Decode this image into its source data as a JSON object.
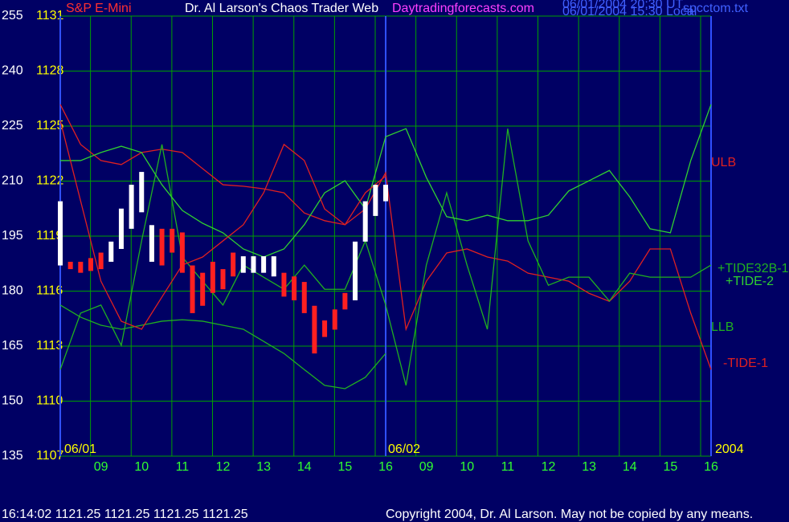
{
  "chart_data": {
    "type": "line",
    "title": "S&P E-Mini",
    "subtitle": "Dr. Al Larson's Chaos Trader Web",
    "site": "Daytradingforecasts.com",
    "timestamps": [
      "06/01/2004 20:30 UT",
      "06/01/2004 15:30 Local"
    ],
    "file": "spcctom.txt",
    "status": "16:14:02  1121.25 1121.25 1121.25 1121.25",
    "copyright": "Copyright 2004, Dr. Al Larson. May not be copied by any means.",
    "day_labels": [
      "06/01",
      "06/02",
      "2004"
    ],
    "background": "#000064",
    "grid_color": "#00a000",
    "grid": true,
    "xlim": [
      8,
      24
    ],
    "xticks": [
      {
        "value": 9,
        "label": "09"
      },
      10,
      11,
      12,
      13,
      14,
      15,
      16,
      {
        "value": 17,
        "label": "09"
      },
      {
        "value": 18,
        "label": "10"
      },
      {
        "value": 19,
        "label": "11"
      },
      {
        "value": 20,
        "label": "12"
      },
      {
        "value": 21,
        "label": "13"
      },
      {
        "value": 22,
        "label": "14"
      },
      {
        "value": 23,
        "label": "15"
      },
      {
        "value": 24,
        "label": "16"
      }
    ],
    "ylim": [
      135,
      255
    ],
    "yticks": [
      135,
      150,
      165,
      180,
      195,
      210,
      225,
      240,
      255
    ],
    "y2lim": [
      1107,
      1131
    ],
    "y2ticks": [
      1107,
      1110,
      1113,
      1116,
      1119,
      1122,
      1125,
      1128,
      1131
    ],
    "x": [
      8,
      8.5,
      9,
      9.5,
      10,
      10.5,
      11,
      11.5,
      12,
      12.5,
      13,
      13.5,
      14,
      14.5,
      15,
      15.5,
      16,
      16.5,
      17,
      17.5,
      18,
      18.5,
      19,
      19.5,
      20,
      20.5,
      21,
      21.5,
      22,
      22.5,
      23,
      23.5,
      24
    ],
    "series": [
      {
        "name": "ULB",
        "color": "#e02020",
        "values": [
          230.9,
          220.0,
          215.6,
          214.5,
          217.8,
          218.7,
          217.8,
          213.4,
          209.0,
          208.6,
          207.9,
          206.8,
          201.3,
          199.2,
          198.1,
          202.4,
          212.3,
          169.6,
          182.7,
          190.4,
          191.5,
          189.3,
          188.2,
          184.9,
          183.8,
          182.7,
          179.4,
          177.2,
          182.7,
          191.5,
          191.5,
          174.0,
          158.6
        ]
      },
      {
        "name": "+TIDE32B-1",
        "color": "#20b020",
        "values": [
          158.6,
          174.0,
          176.2,
          165.2,
          193.7,
          220.0,
          189.3,
          182.7,
          176.2,
          187.1,
          183.8,
          180.5,
          187.1,
          180.5,
          180.5,
          193.7,
          176.2,
          154.3,
          187.1,
          206.8,
          187.1,
          169.6,
          224.3,
          193.7,
          181.6,
          183.8,
          183.8,
          177.3,
          184.9,
          183.8,
          183.8,
          183.8,
          187.1
        ]
      },
      {
        "name": "+TIDE-2",
        "color": "#30d030",
        "values": [
          215.6,
          215.6,
          217.8,
          219.5,
          217.8,
          209.0,
          202.0,
          198.5,
          195.9,
          191.5,
          189.3,
          191.5,
          198.1,
          206.8,
          210.1,
          202.4,
          222.1,
          224.3,
          211.0,
          200.3,
          199.2,
          200.7,
          199.2,
          199.2,
          200.7,
          207.3,
          210.1,
          212.9,
          205.7,
          197.0,
          195.9,
          215.6,
          230.9
        ]
      },
      {
        "name": "LLB",
        "color": "#20b020",
        "values": [
          176.2,
          172.9,
          170.7,
          169.6,
          170.7,
          171.8,
          172.2,
          171.8,
          170.7,
          169.6,
          166.3,
          163.0,
          158.6,
          154.3,
          153.4,
          156.5,
          163.0,
          null,
          null,
          null,
          null,
          null,
          null,
          null,
          null,
          null,
          null,
          null,
          null,
          null,
          null,
          null,
          null
        ]
      },
      {
        "name": "-TIDE-1",
        "color": "#e02020",
        "values": [
          226.5,
          204.6,
          182.7,
          171.8,
          169.6,
          178.4,
          187.1,
          189.3,
          193.7,
          198.1,
          206.8,
          220.0,
          215.6,
          202.4,
          198.1,
          206.8,
          211.4,
          null,
          null,
          null,
          null,
          null,
          null,
          null,
          null,
          null,
          null,
          null,
          null,
          null,
          null,
          null,
          null
        ]
      }
    ],
    "bars": {
      "axis": "y2",
      "x": [
        8,
        8.25,
        8.5,
        8.75,
        9,
        9.25,
        9.5,
        9.75,
        10,
        10.25,
        10.5,
        10.75,
        11,
        11.25,
        11.5,
        11.75,
        12,
        12.25,
        12.5,
        12.75,
        13,
        13.25,
        13.5,
        13.75,
        14,
        14.25,
        14.5,
        14.75,
        15,
        15.25,
        15.5,
        15.75,
        16
      ],
      "high": [
        1120.9,
        1117.6,
        1117.6,
        1117.8,
        1118.1,
        1118.7,
        1120.5,
        1121.8,
        1122.5,
        1119.6,
        1119.4,
        1119.4,
        1119.2,
        1117.4,
        1117.0,
        1117.6,
        1117.2,
        1118.1,
        1117.9,
        1117.9,
        1117.9,
        1117.9,
        1117.0,
        1116.8,
        1116.5,
        1115.2,
        1114.4,
        1115.0,
        1115.9,
        1118.7,
        1120.9,
        1121.8,
        1121.8
      ],
      "low": [
        1117.4,
        1117.2,
        1117.0,
        1117.1,
        1117.2,
        1117.6,
        1118.3,
        1119.4,
        1120.3,
        1117.6,
        1117.4,
        1118.1,
        1117.0,
        1114.8,
        1115.2,
        1115.9,
        1116.1,
        1116.8,
        1117.0,
        1117.0,
        1117.0,
        1116.8,
        1115.7,
        1115.5,
        1114.8,
        1112.6,
        1113.5,
        1113.9,
        1115.0,
        1115.5,
        1118.7,
        1120.1,
        1120.9
      ],
      "colors": [
        "#ffffff",
        "#ff2020",
        "#ff2020",
        "#ff2020",
        "#ff2020",
        "#ffffff",
        "#ffffff",
        "#ffffff",
        "#ffffff",
        "#ffffff",
        "#ff2020",
        "#ff2020",
        "#ff2020",
        "#ff2020",
        "#ff2020",
        "#ff2020",
        "#ff2020",
        "#ff2020",
        "#ffffff",
        "#ffffff",
        "#ffffff",
        "#ffffff",
        "#ff2020",
        "#ff2020",
        "#ff2020",
        "#ff2020",
        "#ff2020",
        "#ff2020",
        "#ff2020",
        "#ffffff",
        "#ffffff",
        "#ffffff",
        "#ffffff"
      ]
    }
  }
}
